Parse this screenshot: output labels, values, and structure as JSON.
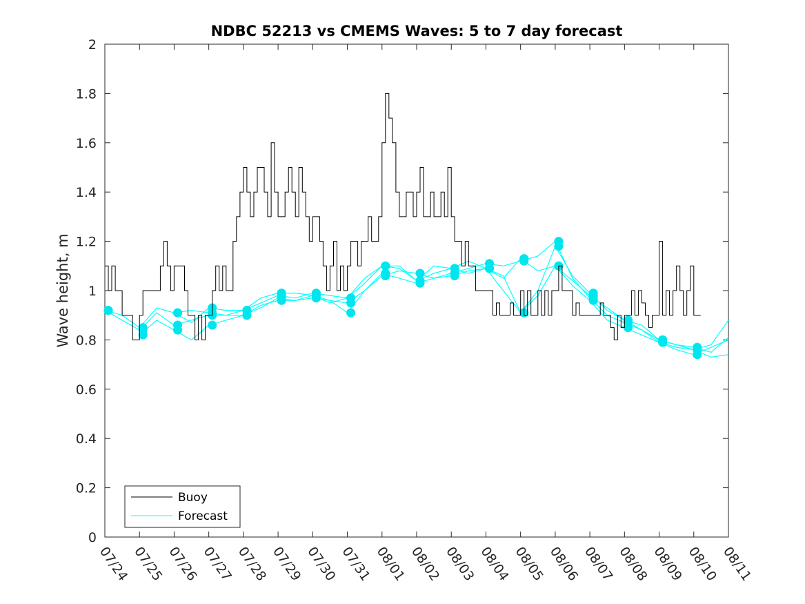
{
  "chart_data": {
    "type": "line",
    "title": "NDBC 52213 vs CMEMS Waves: 5 to 7 day forecast",
    "xlabel": "",
    "ylabel": "Wave height, m",
    "ylim": [
      0,
      2
    ],
    "yticks": [
      "0",
      "0.2",
      "0.4",
      "0.6",
      "0.8",
      "1",
      "1.2",
      "1.4",
      "1.6",
      "1.8",
      "2"
    ],
    "x_tick_labels": [
      "07/24",
      "07/25",
      "07/26",
      "07/27",
      "07/28",
      "07/29",
      "07/30",
      "07/31",
      "08/01",
      "08/02",
      "08/03",
      "08/04",
      "08/05",
      "08/06",
      "08/07",
      "08/08",
      "08/09",
      "08/10",
      "08/11"
    ],
    "x_unit": "days since 07/24",
    "xlim": [
      0,
      18
    ],
    "grid": false,
    "legend_position": "bottom-left",
    "colors": {
      "buoy": "#000000",
      "forecast": "#00FFFF",
      "marker": "#00E5EE"
    },
    "series": [
      {
        "name": "Buoy",
        "x": [
          0.0,
          0.1,
          0.2,
          0.3,
          0.4,
          0.5,
          0.6,
          0.7,
          0.8,
          0.9,
          1.0,
          1.1,
          1.2,
          1.3,
          1.4,
          1.5,
          1.6,
          1.7,
          1.8,
          1.9,
          2.0,
          2.1,
          2.2,
          2.3,
          2.4,
          2.5,
          2.6,
          2.7,
          2.8,
          2.9,
          3.0,
          3.1,
          3.2,
          3.3,
          3.4,
          3.5,
          3.6,
          3.7,
          3.8,
          3.9,
          4.0,
          4.1,
          4.2,
          4.3,
          4.4,
          4.5,
          4.6,
          4.7,
          4.8,
          4.9,
          5.0,
          5.1,
          5.2,
          5.3,
          5.4,
          5.5,
          5.6,
          5.7,
          5.8,
          5.9,
          6.0,
          6.1,
          6.2,
          6.3,
          6.4,
          6.5,
          6.6,
          6.7,
          6.8,
          6.9,
          7.0,
          7.1,
          7.2,
          7.3,
          7.4,
          7.5,
          7.6,
          7.7,
          7.8,
          7.9,
          8.0,
          8.1,
          8.2,
          8.3,
          8.4,
          8.5,
          8.6,
          8.7,
          8.8,
          8.9,
          9.0,
          9.1,
          9.2,
          9.3,
          9.4,
          9.5,
          9.6,
          9.7,
          9.8,
          9.9,
          10.0,
          10.1,
          10.2,
          10.3,
          10.4,
          10.5,
          10.6,
          10.7,
          10.8,
          10.9,
          11.0,
          11.1,
          11.2,
          11.3,
          11.4,
          11.5,
          11.6,
          11.7,
          11.8,
          11.9,
          12.0,
          12.1,
          12.2,
          12.3,
          12.4,
          12.5,
          12.6,
          12.7,
          12.8,
          12.9,
          13.0,
          13.1,
          13.2,
          13.3,
          13.4,
          13.5,
          13.6,
          13.7,
          13.8,
          13.9,
          14.0,
          14.1,
          14.2,
          14.3,
          14.4,
          14.5,
          14.6,
          14.7,
          14.8,
          14.9,
          15.0,
          15.1,
          15.2,
          15.3,
          15.4,
          15.5,
          15.6,
          15.7,
          15.8,
          15.9,
          16.0,
          16.1,
          16.2,
          16.3,
          16.4,
          16.5,
          16.6,
          16.7,
          16.8,
          16.9,
          17.0,
          17.1,
          17.2
        ],
        "values": [
          1.1,
          1.0,
          1.1,
          1.0,
          1.0,
          0.9,
          0.9,
          0.9,
          0.8,
          0.8,
          0.9,
          1.0,
          1.0,
          1.0,
          1.0,
          1.0,
          1.1,
          1.2,
          1.1,
          1.0,
          1.1,
          1.1,
          1.1,
          1.0,
          0.9,
          0.9,
          0.8,
          0.9,
          0.8,
          0.9,
          0.9,
          1.0,
          1.1,
          1.0,
          1.1,
          1.0,
          1.0,
          1.2,
          1.3,
          1.4,
          1.5,
          1.4,
          1.3,
          1.4,
          1.5,
          1.5,
          1.4,
          1.3,
          1.6,
          1.4,
          1.3,
          1.3,
          1.4,
          1.5,
          1.4,
          1.3,
          1.5,
          1.4,
          1.3,
          1.2,
          1.3,
          1.3,
          1.2,
          1.1,
          1.0,
          1.1,
          1.2,
          1.0,
          1.1,
          1.0,
          1.1,
          1.2,
          1.2,
          1.1,
          1.2,
          1.2,
          1.3,
          1.2,
          1.2,
          1.3,
          1.6,
          1.8,
          1.7,
          1.6,
          1.4,
          1.3,
          1.3,
          1.4,
          1.4,
          1.3,
          1.4,
          1.5,
          1.3,
          1.3,
          1.4,
          1.3,
          1.3,
          1.4,
          1.3,
          1.5,
          1.3,
          1.2,
          1.2,
          1.1,
          1.2,
          1.1,
          1.1,
          1.0,
          1.0,
          1.0,
          1.0,
          1.0,
          0.9,
          0.95,
          0.9,
          0.9,
          0.9,
          0.95,
          0.9,
          0.9,
          1.0,
          0.9,
          1.0,
          0.9,
          0.9,
          1.0,
          0.9,
          1.0,
          0.9,
          1.0,
          1.0,
          1.1,
          1.0,
          1.0,
          1.0,
          0.9,
          0.95,
          0.9,
          0.9,
          0.9,
          0.9,
          0.9,
          0.9,
          0.95,
          0.9,
          0.9,
          0.85,
          0.8,
          0.9,
          0.85,
          0.9,
          0.9,
          1.0,
          0.9,
          1.0,
          0.95,
          0.9,
          0.85,
          0.9,
          0.9,
          1.2,
          0.9,
          1.0,
          0.9,
          1.0,
          1.1,
          1.0,
          0.9,
          1.0,
          1.1,
          0.9,
          0.9,
          0.9
        ]
      },
      {
        "name": "Forecast",
        "runs": [
          {
            "x": [
              0.0,
              0.5,
              1.0,
              1.5,
              2.0,
              2.5,
              3.0,
              3.5,
              4.0,
              4.5,
              5.0,
              5.5,
              6.0,
              6.5,
              7.0,
              7.5,
              8.0,
              8.5,
              9.0,
              9.5,
              10.0,
              10.5,
              11.0,
              11.5,
              12.0,
              12.5,
              13.0,
              13.5,
              14.0,
              14.5,
              15.0,
              15.5,
              16.0,
              16.5,
              17.0,
              17.5,
              18.0
            ],
            "values": [
              0.92,
              0.9,
              0.85,
              0.93,
              0.91,
              0.92,
              0.91,
              0.9,
              0.92,
              0.95,
              0.98,
              0.97,
              0.99,
              0.98,
              0.97,
              1.03,
              1.1,
              1.09,
              1.04,
              1.07,
              1.09,
              1.07,
              1.09,
              1.06,
              0.91,
              1.0,
              1.18,
              1.06,
              0.99,
              0.92,
              0.88,
              0.84,
              0.79,
              0.77,
              0.76,
              0.78,
              0.88
            ]
          },
          {
            "x": [
              1.0,
              1.5,
              2.0,
              2.5,
              3.0,
              3.5,
              4.0,
              4.5,
              5.0,
              5.5,
              6.0,
              6.5,
              7.0,
              7.5,
              8.0,
              8.5,
              9.0,
              9.5,
              10.0,
              10.5,
              11.0,
              11.5,
              12.0,
              12.5,
              13.0,
              13.5,
              14.0,
              14.5,
              15.0,
              15.5,
              16.0,
              16.5,
              17.0,
              17.5,
              18.0
            ],
            "values": [
              0.82,
              0.88,
              0.84,
              0.8,
              0.86,
              0.88,
              0.9,
              0.93,
              0.97,
              0.96,
              0.98,
              0.96,
              0.91,
              1.0,
              1.07,
              1.05,
              1.03,
              1.05,
              1.06,
              1.08,
              1.09,
              1.05,
              1.13,
              1.08,
              1.1,
              1.02,
              0.96,
              0.88,
              0.85,
              0.82,
              0.79,
              0.76,
              0.74,
              0.77,
              0.8
            ]
          },
          {
            "x": [
              2.0,
              2.5,
              3.0,
              3.5,
              4.0,
              4.5,
              5.0,
              5.5,
              6.0,
              6.5,
              7.0,
              7.5,
              8.0,
              8.5,
              9.0,
              9.5,
              10.0,
              10.5,
              11.0,
              11.5,
              12.0,
              12.5,
              13.0,
              13.5,
              14.0,
              14.5,
              15.0,
              15.5,
              16.0,
              16.5,
              17.0,
              17.5,
              18.0
            ],
            "values": [
              0.91,
              0.87,
              0.93,
              0.92,
              0.92,
              0.97,
              0.99,
              0.99,
              0.98,
              0.95,
              0.97,
              1.05,
              1.1,
              1.1,
              1.04,
              1.1,
              1.09,
              1.12,
              1.09,
              1.0,
              0.91,
              0.98,
              1.1,
              1.04,
              0.98,
              0.93,
              0.88,
              0.86,
              0.8,
              0.78,
              0.77,
              0.75,
              0.81
            ]
          },
          {
            "x": [
              0.0,
              0.5,
              1.0,
              1.5,
              2.0,
              2.5,
              3.0,
              3.5,
              4.0,
              4.5,
              5.0,
              5.5,
              6.0,
              6.5,
              7.0,
              7.5,
              8.0,
              8.5,
              9.0,
              9.5,
              10.0,
              10.5,
              11.0,
              11.5,
              12.0,
              12.5,
              13.0,
              13.5,
              14.0,
              14.5,
              15.0,
              15.5,
              16.0,
              16.5,
              17.0,
              17.5,
              18.0
            ],
            "values": [
              0.92,
              0.88,
              0.84,
              0.91,
              0.86,
              0.88,
              0.9,
              0.9,
              0.9,
              0.94,
              0.96,
              0.96,
              0.97,
              0.96,
              0.95,
              1.0,
              1.06,
              1.08,
              1.07,
              1.05,
              1.07,
              1.09,
              1.11,
              1.1,
              1.12,
              1.14,
              1.2,
              1.05,
              0.97,
              0.9,
              0.87,
              0.84,
              0.8,
              0.78,
              0.76,
              0.73,
              0.74
            ]
          }
        ]
      }
    ],
    "legend": [
      "Buoy",
      "Forecast"
    ]
  }
}
